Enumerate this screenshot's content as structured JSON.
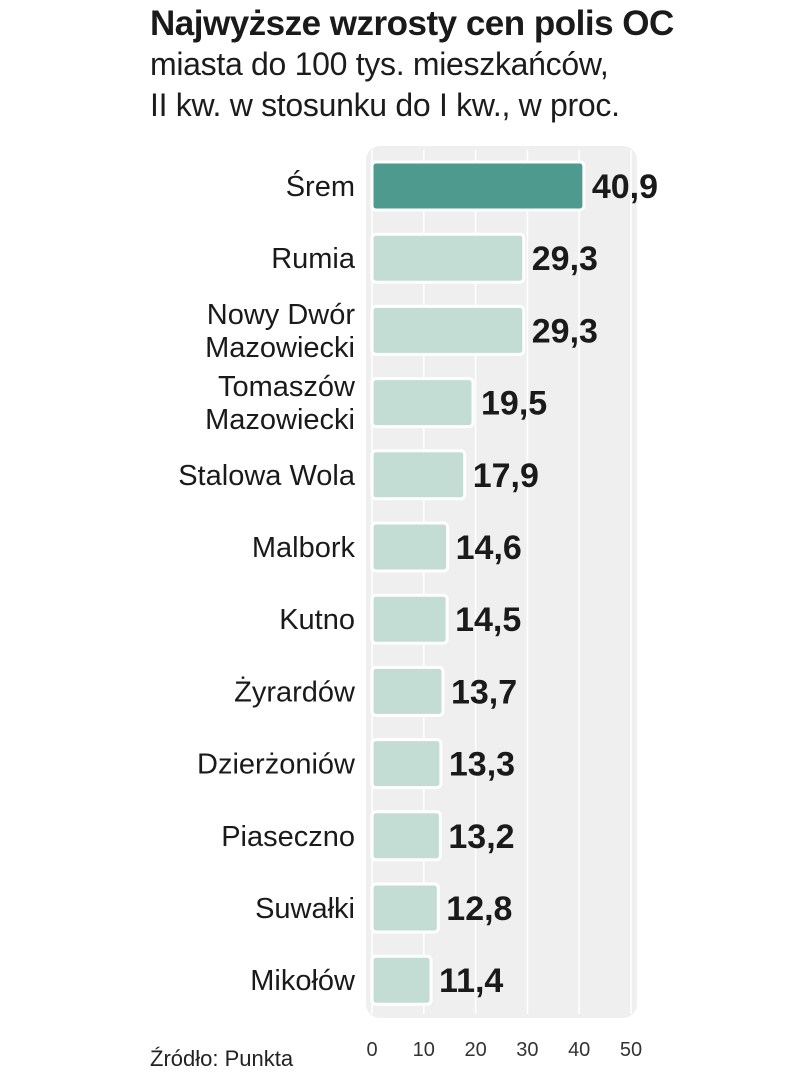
{
  "header": {
    "title": "Najwyższe wzrosty cen polis OC",
    "subtitle_line1": "miasta do 100 tys. mieszkańców,",
    "subtitle_line2": "II kw. w stosunku do I kw., w proc."
  },
  "source": "Źródło: Punkta",
  "colors": {
    "highlight_bar": "#4e9a8e",
    "bar": "#c3dcd4",
    "panel": "#efefef",
    "grid": "#ffffff"
  },
  "chart_data": {
    "type": "bar",
    "orientation": "horizontal",
    "title": "Najwyższe wzrosty cen polis OC",
    "subtitle": "miasta do 100 tys. mieszkańców, II kw. w stosunku do I kw., w proc.",
    "categories": [
      [
        "Śrem"
      ],
      [
        "Rumia"
      ],
      [
        "Nowy Dwór",
        "Mazowiecki"
      ],
      [
        "Tomaszów",
        "Mazowiecki"
      ],
      [
        "Stalowa Wola"
      ],
      [
        "Malbork"
      ],
      [
        "Kutno"
      ],
      [
        "Żyrardów"
      ],
      [
        "Dzierżoniów"
      ],
      [
        "Piaseczno"
      ],
      [
        "Suwałki"
      ],
      [
        "Mikołów"
      ]
    ],
    "values": [
      40.9,
      29.3,
      29.3,
      19.5,
      17.9,
      14.6,
      14.5,
      13.7,
      13.3,
      13.2,
      12.8,
      11.4
    ],
    "value_labels": [
      "40,9",
      "29,3",
      "29,3",
      "19,5",
      "17,9",
      "14,6",
      "14,5",
      "13,7",
      "13,3",
      "13,2",
      "12,8",
      "11,4"
    ],
    "highlight_index": 0,
    "xlim": [
      0,
      50
    ],
    "xticks": [
      0,
      10,
      20,
      30,
      40,
      50
    ],
    "xlabel": "",
    "ylabel": "",
    "grid": true,
    "legend": "none"
  }
}
